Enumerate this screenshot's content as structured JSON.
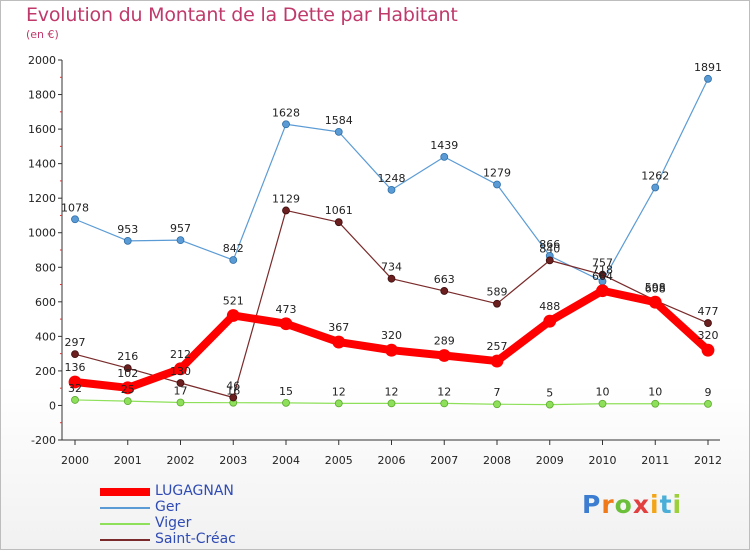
{
  "header": {
    "title": "Evolution du Montant de la Dette par Habitant",
    "subtitle": "(en €)"
  },
  "logo": {
    "text": "Proxiti"
  },
  "chart_data": {
    "type": "line",
    "title": "Evolution du Montant de la Dette par Habitant",
    "subtitle": "(en €)",
    "x": [
      "2000",
      "2001",
      "2002",
      "2003",
      "2004",
      "2005",
      "2006",
      "2007",
      "2008",
      "2009",
      "2010",
      "2011",
      "2012"
    ],
    "ylim": [
      -200,
      2000
    ],
    "yticks": [
      -200,
      0,
      200,
      400,
      600,
      800,
      1000,
      1200,
      1400,
      1600,
      1800,
      2000
    ],
    "grid": false,
    "legend_position": "bottom-left",
    "series": [
      {
        "name": "LUGAGNAN",
        "color": "#ff0000",
        "values": [
          136,
          102,
          212,
          521,
          473,
          367,
          320,
          289,
          257,
          488,
          664,
          598,
          320
        ]
      },
      {
        "name": "Ger",
        "color": "#5b9bd5",
        "values": [
          1078,
          953,
          957,
          842,
          1628,
          1584,
          1248,
          1439,
          1279,
          866,
          718,
          1262,
          1891
        ]
      },
      {
        "name": "Viger",
        "color": "#8ee05a",
        "values": [
          32,
          25,
          17,
          16,
          15,
          12,
          12,
          12,
          7,
          5,
          10,
          10,
          9
        ]
      },
      {
        "name": "Saint-Créac",
        "color": "#7a2a2a",
        "values": [
          297,
          216,
          130,
          46,
          1129,
          1061,
          734,
          663,
          589,
          840,
          757,
          608,
          477
        ]
      }
    ]
  }
}
